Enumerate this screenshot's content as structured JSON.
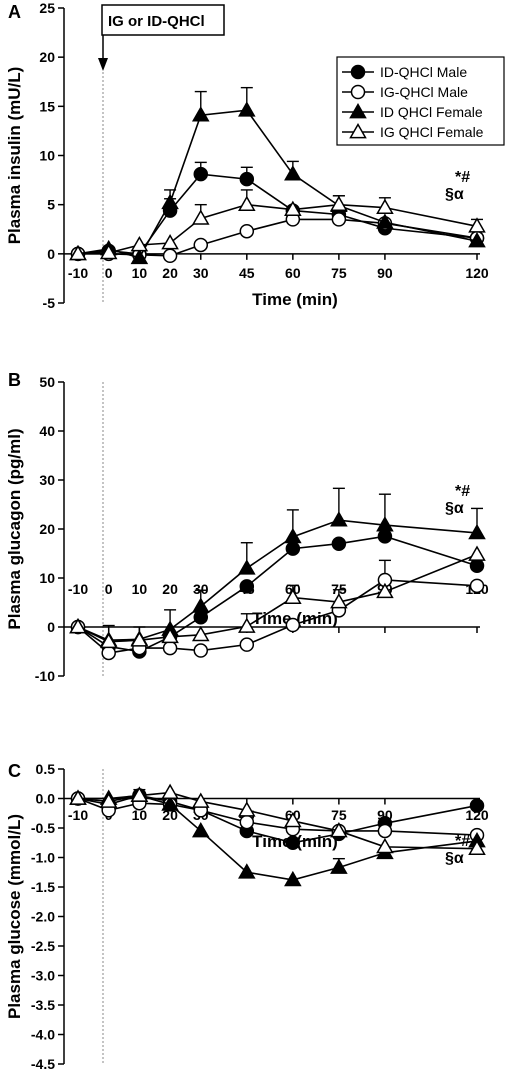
{
  "annotation_box": "IG or ID-QHCl",
  "chart_data": [
    {
      "panel": "A",
      "type": "line",
      "xlabel": "Time (min)",
      "ylabel": "Plasma insulin (mU/L)",
      "x": [
        -10,
        0,
        10,
        20,
        30,
        45,
        60,
        75,
        90,
        120
      ],
      "xticks": [
        -10,
        0,
        10,
        20,
        30,
        45,
        60,
        75,
        90,
        120
      ],
      "ylim": [
        -5,
        25
      ],
      "yticks": [
        -5,
        0,
        5,
        10,
        15,
        20,
        25
      ],
      "legend": "top-right",
      "significance": [
        "*#",
        "§α"
      ],
      "series": [
        {
          "name": "ID-QHCl Male",
          "marker": "circle-filled",
          "values": [
            0,
            0.3,
            0,
            4.4,
            8.1,
            7.6,
            4.4,
            4.0,
            2.6,
            1.6
          ],
          "errors": [
            0,
            0,
            0,
            1.2,
            1.2,
            1.2,
            0,
            0,
            0,
            0
          ]
        },
        {
          "name": "IG-QHCl Male",
          "marker": "circle-open",
          "values": [
            0,
            0,
            -0.1,
            -0.2,
            0.9,
            2.3,
            3.5,
            3.5,
            3.1,
            1.6
          ],
          "errors": [
            0,
            0,
            0,
            0,
            0,
            0,
            0,
            0,
            0,
            0
          ]
        },
        {
          "name": "ID QHCl Female",
          "marker": "triangle-filled",
          "values": [
            0,
            0.5,
            -0.4,
            5.2,
            14.1,
            14.6,
            8.1,
            4.9,
            3.2,
            1.3
          ],
          "errors": [
            0,
            0,
            0,
            1.3,
            2.4,
            2.3,
            1.3,
            1.0,
            0,
            0
          ]
        },
        {
          "name": "IG QHCl Female",
          "marker": "triangle-open",
          "values": [
            0,
            0.1,
            0.9,
            1.1,
            3.6,
            5.0,
            4.5,
            5.0,
            4.7,
            2.8
          ],
          "errors": [
            0,
            0,
            0,
            0,
            1.4,
            1.5,
            0,
            0.9,
            1.0,
            0.7
          ]
        }
      ]
    },
    {
      "panel": "B",
      "type": "line",
      "xlabel": "Time (min)",
      "ylabel": "Plasma glucagon (pg/ml)",
      "x": [
        -10,
        0,
        10,
        20,
        30,
        45,
        60,
        75,
        90,
        120
      ],
      "xticks": [
        -10,
        0,
        10,
        20,
        30,
        45,
        60,
        75,
        90,
        120
      ],
      "ylim": [
        -10,
        50
      ],
      "yticks": [
        -10,
        0,
        10,
        20,
        30,
        40,
        50
      ],
      "significance": [
        "*#",
        "§α"
      ],
      "series": [
        {
          "name": "ID-QHCl Male",
          "marker": "circle-filled",
          "values": [
            0,
            -4,
            -5,
            -2,
            2,
            8.3,
            16,
            17,
            18.5,
            12.5
          ],
          "errors": [
            0,
            0,
            0,
            0,
            0,
            0,
            0,
            0,
            0,
            0
          ]
        },
        {
          "name": "IG-QHCl Male",
          "marker": "circle-open",
          "values": [
            0,
            -5.3,
            -4.3,
            -4.3,
            -4.8,
            -3.6,
            0.4,
            3.4,
            9.6,
            8.4
          ],
          "errors": [
            0,
            0,
            0,
            0,
            0,
            0,
            0,
            0,
            4.0,
            0
          ]
        },
        {
          "name": "ID QHCl Female",
          "marker": "triangle-filled",
          "values": [
            0,
            -2.7,
            -2.5,
            -0.5,
            4.2,
            12,
            18.4,
            21.8,
            20.8,
            19.2
          ],
          "errors": [
            0,
            3.0,
            2.5,
            4.0,
            3.3,
            5.2,
            5.5,
            6.5,
            6.3,
            5.0
          ]
        },
        {
          "name": "IG QHCl Female",
          "marker": "triangle-open",
          "values": [
            0,
            -3.0,
            -2.7,
            -2.0,
            -1.6,
            0.1,
            6,
            5.1,
            7.2,
            14.8
          ],
          "errors": [
            0,
            0,
            0,
            0,
            0,
            2.6,
            2.5,
            2.5,
            0,
            0
          ]
        }
      ]
    },
    {
      "panel": "C",
      "type": "line",
      "xlabel": "Time (min)",
      "ylabel": "Plasma glucose (mmol/L)",
      "x": [
        -10,
        0,
        10,
        20,
        30,
        45,
        60,
        75,
        90,
        120
      ],
      "xticks": [
        -10,
        0,
        10,
        20,
        30,
        45,
        60,
        75,
        90,
        120
      ],
      "ylim": [
        -4.5,
        0.5
      ],
      "yticks": [
        0.5,
        0.0,
        -0.5,
        -1.0,
        -1.5,
        -2.0,
        -2.5,
        -3.0,
        -3.5,
        -4.0,
        -4.5
      ],
      "significance": [
        "*#",
        "§α"
      ],
      "series": [
        {
          "name": "ID-QHCl Male",
          "marker": "circle-filled",
          "values": [
            0,
            -0.1,
            0.05,
            -0.05,
            -0.2,
            -0.55,
            -0.75,
            -0.6,
            -0.42,
            -0.12
          ],
          "errors": [
            0,
            0,
            0.1,
            0,
            0,
            0,
            0,
            0,
            0,
            0
          ]
        },
        {
          "name": "IG-QHCl Male",
          "marker": "circle-open",
          "values": [
            0,
            -0.2,
            -0.08,
            -0.1,
            -0.2,
            -0.4,
            -0.52,
            -0.55,
            -0.55,
            -0.62
          ],
          "errors": [
            0,
            0,
            0,
            0,
            0,
            0,
            0,
            0,
            0,
            0
          ]
        },
        {
          "name": "ID QHCl Female",
          "marker": "triangle-filled",
          "values": [
            0,
            0,
            0.05,
            -0.1,
            -0.55,
            -1.25,
            -1.38,
            -1.17,
            -0.92,
            -0.72
          ],
          "errors": [
            0,
            0,
            0,
            0,
            0,
            0,
            0,
            0.15,
            0,
            0
          ]
        },
        {
          "name": "IG QHCl Female",
          "marker": "triangle-open",
          "values": [
            0,
            -0.05,
            0.05,
            0.1,
            -0.05,
            -0.2,
            -0.38,
            -0.55,
            -0.82,
            -0.85
          ],
          "errors": [
            0,
            0,
            0,
            0,
            0,
            0,
            0,
            0,
            0,
            0
          ]
        }
      ]
    }
  ]
}
